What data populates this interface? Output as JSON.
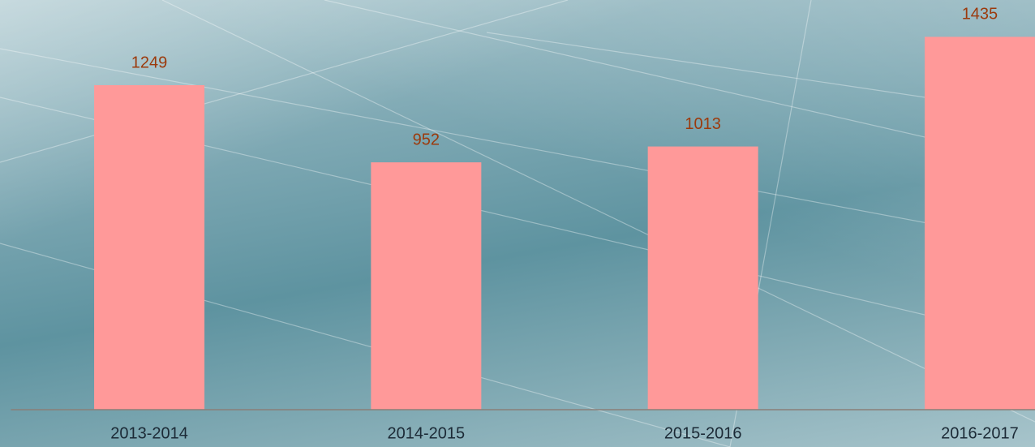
{
  "chart_data": {
    "type": "bar",
    "categories": [
      "2013-2014",
      "2014-2015",
      "2015-2016",
      "2016-2017"
    ],
    "values": [
      1249,
      952,
      1013,
      1435
    ],
    "color": "#ff9999",
    "ylim": [
      0,
      1500
    ]
  }
}
